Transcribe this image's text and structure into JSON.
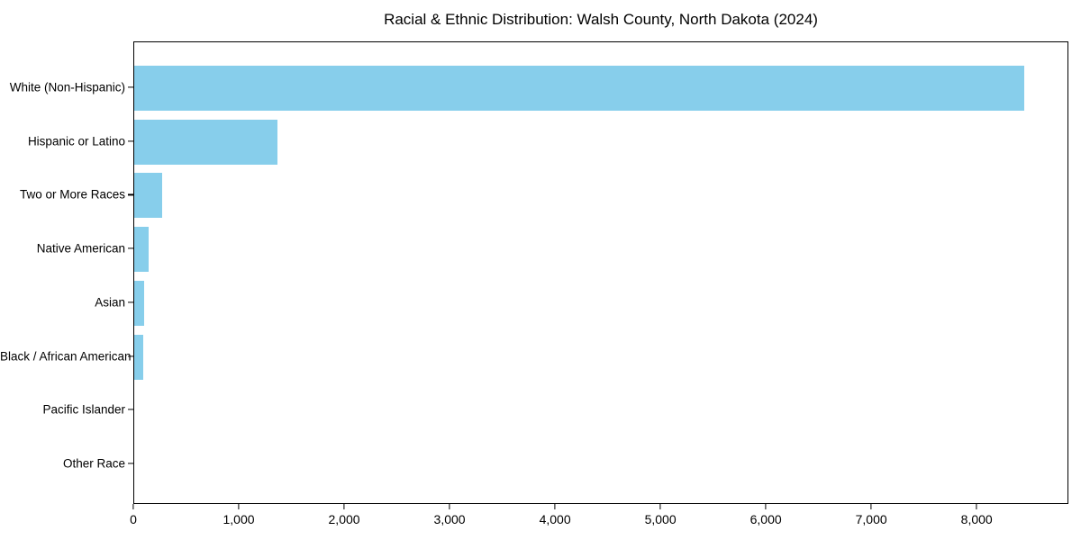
{
  "chart_data": {
    "type": "bar",
    "orientation": "horizontal",
    "title": "Racial & Ethnic Distribution: Walsh County, North Dakota (2024)",
    "categories": [
      "White (Non-Hispanic)",
      "Hispanic or Latino",
      "Two or More Races",
      "Native American",
      "Asian",
      "Black / African American",
      "Pacific Islander",
      "Other Race"
    ],
    "values": [
      8440,
      1360,
      262,
      133,
      96,
      88,
      0,
      0
    ],
    "xlabel": "",
    "ylabel": "",
    "xlim": [
      0,
      8870
    ],
    "xticks": [
      0,
      1000,
      2000,
      3000,
      4000,
      5000,
      6000,
      7000,
      8000
    ],
    "xtick_labels": [
      "0",
      "1,000",
      "2,000",
      "3,000",
      "4,000",
      "5,000",
      "6,000",
      "7,000",
      "8,000"
    ],
    "grid": false,
    "legend_position": "none",
    "bar_color": "#87CEEB",
    "axis_color": "#000000",
    "background_color": "#FFFFFF"
  }
}
